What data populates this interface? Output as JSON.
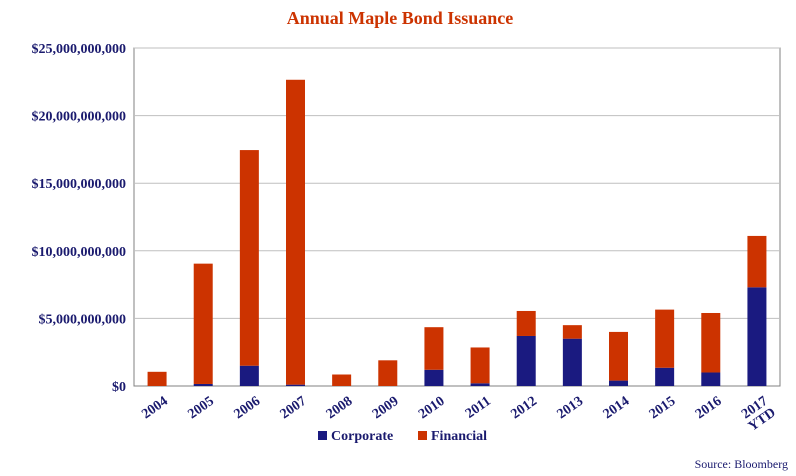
{
  "chart_data": {
    "type": "bar",
    "stacked": true,
    "title": "Annual Maple Bond Issuance",
    "xlabel": "",
    "ylabel": "",
    "categories": [
      "2004",
      "2005",
      "2006",
      "2007",
      "2008",
      "2009",
      "2010",
      "2011",
      "2012",
      "2013",
      "2014",
      "2015",
      "2016",
      "2017 YTD"
    ],
    "category_lines": [
      [
        "2004"
      ],
      [
        "2005"
      ],
      [
        "2006"
      ],
      [
        "2007"
      ],
      [
        "2008"
      ],
      [
        "2009"
      ],
      [
        "2010"
      ],
      [
        "2011"
      ],
      [
        "2012"
      ],
      [
        "2013"
      ],
      [
        "2014"
      ],
      [
        "2015"
      ],
      [
        "2016"
      ],
      [
        "2017",
        "YTD"
      ]
    ],
    "series": [
      {
        "name": "Corporate",
        "color": "#1a1a80",
        "values": [
          0,
          150000000,
          1500000000,
          100000000,
          0,
          0,
          1200000000,
          200000000,
          3700000000,
          3500000000,
          400000000,
          1350000000,
          1000000000,
          7300000000
        ]
      },
      {
        "name": "Financial",
        "color": "#cc3300",
        "values": [
          1050000000,
          8900000000,
          15950000000,
          22550000000,
          850000000,
          1900000000,
          3150000000,
          2650000000,
          1850000000,
          1000000000,
          3600000000,
          4300000000,
          4400000000,
          3800000000
        ]
      }
    ],
    "ylim": [
      0,
      25000000000
    ],
    "y_ticks": [
      0,
      5000000000,
      10000000000,
      15000000000,
      20000000000,
      25000000000
    ],
    "y_tick_labels": [
      "$0",
      "$5,000,000,000",
      "$10,000,000,000",
      "$15,000,000,000",
      "$20,000,000,000",
      "$25,000,000,000"
    ],
    "grid": true,
    "legend_position": "bottom-center",
    "source": "Source: Bloomberg"
  }
}
